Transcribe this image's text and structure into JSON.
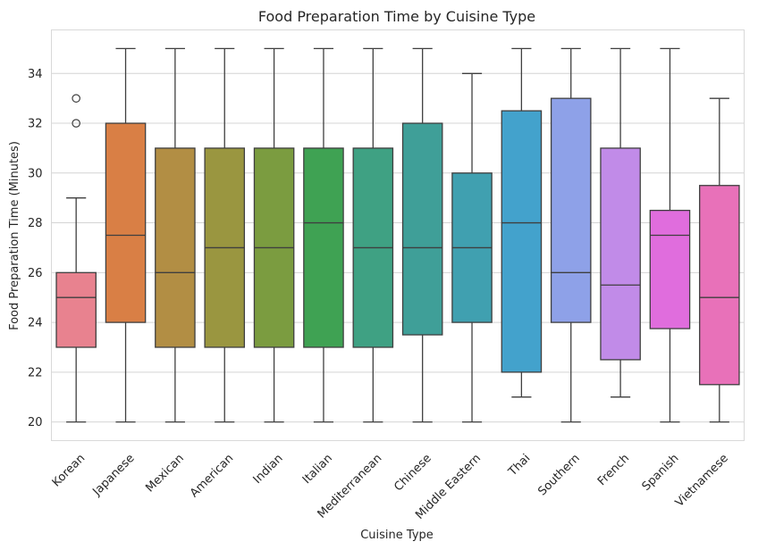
{
  "chart_data": {
    "type": "box",
    "title": "Food Preparation Time by Cuisine Type",
    "xlabel": "Cuisine Type",
    "ylabel": "Food Preparation Time (Minutes)",
    "ylim": [
      19.25,
      35.75
    ],
    "yticks": [
      20,
      22,
      24,
      26,
      28,
      30,
      32,
      34
    ],
    "grid": true,
    "categories": [
      "Korean",
      "Japanese",
      "Mexican",
      "American",
      "Indian",
      "Italian",
      "Mediterranean",
      "Chinese",
      "Middle Eastern",
      "Thai",
      "Southern",
      "French",
      "Spanish",
      "Vietnamese"
    ],
    "boxes": [
      {
        "category": "Korean",
        "whisker_low": 20,
        "q1": 23,
        "median": 25,
        "q3": 26,
        "whisker_high": 29,
        "outliers": [
          32,
          33
        ],
        "color": "#e8828f"
      },
      {
        "category": "Japanese",
        "whisker_low": 20,
        "q1": 24,
        "median": 27.5,
        "q3": 32,
        "whisker_high": 35,
        "outliers": [],
        "color": "#d97f45"
      },
      {
        "category": "Mexican",
        "whisker_low": 20,
        "q1": 23,
        "median": 26,
        "q3": 31,
        "whisker_high": 35,
        "outliers": [],
        "color": "#b28e44"
      },
      {
        "category": "American",
        "whisker_low": 20,
        "q1": 23,
        "median": 27,
        "q3": 31,
        "whisker_high": 35,
        "outliers": [],
        "color": "#9a9640"
      },
      {
        "category": "Indian",
        "whisker_low": 20,
        "q1": 23,
        "median": 27,
        "q3": 31,
        "whisker_high": 35,
        "outliers": [],
        "color": "#7b9c40"
      },
      {
        "category": "Italian",
        "whisker_low": 20,
        "q1": 23,
        "median": 28,
        "q3": 31,
        "whisker_high": 35,
        "outliers": [],
        "color": "#3fa253"
      },
      {
        "category": "Mediterranean",
        "whisker_low": 20,
        "q1": 23,
        "median": 27,
        "q3": 31,
        "whisker_high": 35,
        "outliers": [],
        "color": "#3fa183"
      },
      {
        "category": "Chinese",
        "whisker_low": 20,
        "q1": 23.5,
        "median": 27,
        "q3": 32,
        "whisker_high": 35,
        "outliers": [],
        "color": "#3f9f98"
      },
      {
        "category": "Middle Eastern",
        "whisker_low": 20,
        "q1": 24,
        "median": 27,
        "q3": 30,
        "whisker_high": 34,
        "outliers": [],
        "color": "#40a0b0"
      },
      {
        "category": "Thai",
        "whisker_low": 21,
        "q1": 22,
        "median": 28,
        "q3": 32.5,
        "whisker_high": 35,
        "outliers": [],
        "color": "#43a2cc"
      },
      {
        "category": "Southern",
        "whisker_low": 20,
        "q1": 24,
        "median": 26,
        "q3": 33,
        "whisker_high": 35,
        "outliers": [],
        "color": "#8ea1e8"
      },
      {
        "category": "French",
        "whisker_low": 21,
        "q1": 22.5,
        "median": 25.5,
        "q3": 31,
        "whisker_high": 35,
        "outliers": [],
        "color": "#c18be8"
      },
      {
        "category": "Spanish",
        "whisker_low": 20,
        "q1": 23.75,
        "median": 27.5,
        "q3": 28.5,
        "whisker_high": 35,
        "outliers": [],
        "color": "#e06ddd"
      },
      {
        "category": "Vietnamese",
        "whisker_low": 20,
        "q1": 21.5,
        "median": 25,
        "q3": 29.5,
        "whisker_high": 33,
        "outliers": [],
        "color": "#e871b9"
      }
    ]
  }
}
